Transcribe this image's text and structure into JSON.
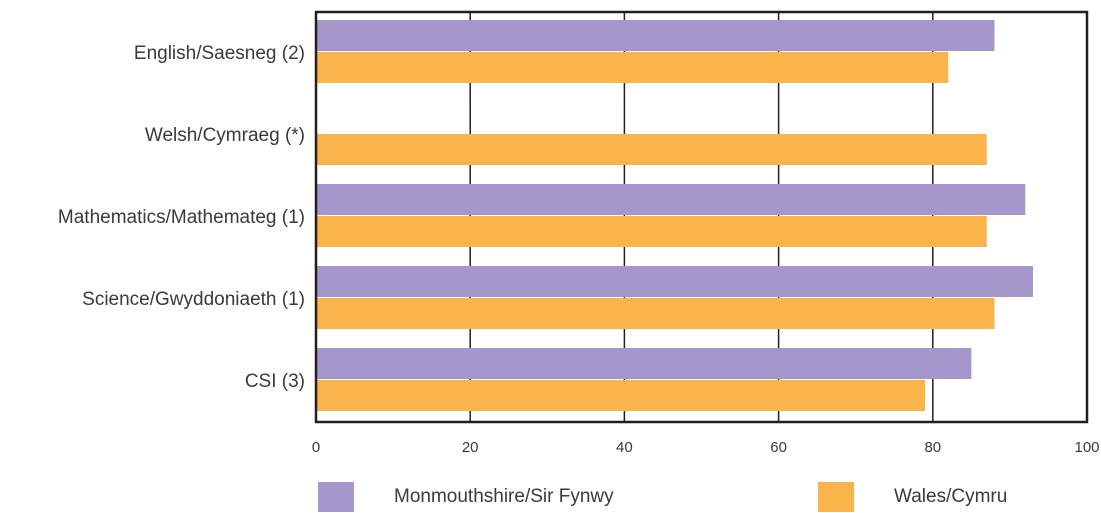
{
  "chart_data": {
    "type": "bar",
    "orientation": "horizontal",
    "categories": [
      "English/Saesneg (2)",
      "Welsh/Cymraeg (*)",
      "Mathematics/Mathemateg (1)",
      "Science/Gwyddoniaeth (1)",
      "CSI (3)"
    ],
    "series": [
      {
        "name": "Monmouthshire/Sir Fynwy",
        "color": "#a597cb",
        "values": [
          88,
          null,
          92,
          93,
          85
        ]
      },
      {
        "name": "Wales/Cymru",
        "color": "#fbb44b",
        "values": [
          82,
          87,
          87,
          88,
          79
        ]
      }
    ],
    "x_ticks": [
      "0",
      "20",
      "40",
      "60",
      "80",
      "100"
    ],
    "xlim": [
      0,
      100
    ],
    "grid": "vertical",
    "legend_position": "bottom"
  }
}
